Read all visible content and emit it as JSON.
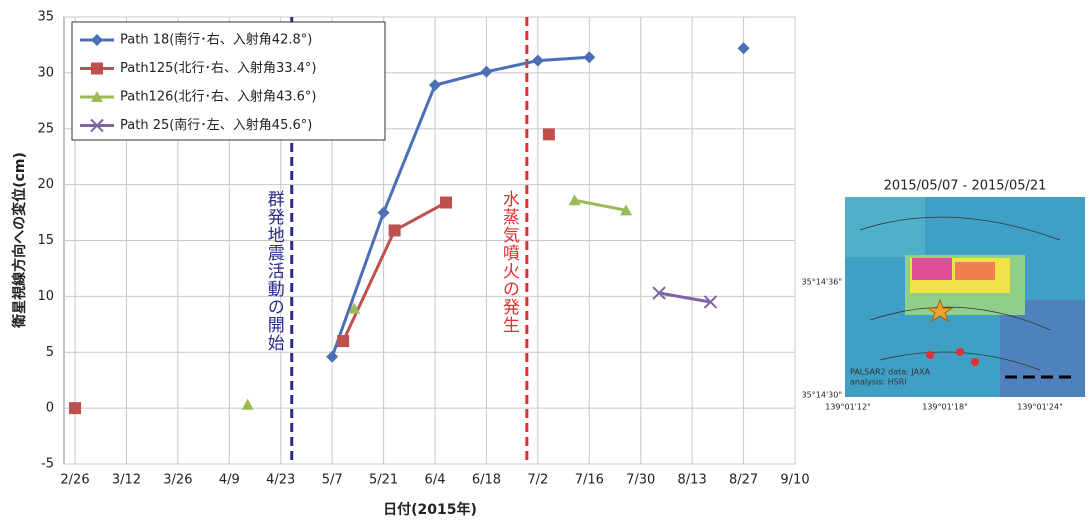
{
  "chart_data": {
    "type": "line",
    "xlabel": "日付(2015年)",
    "ylabel": "衛星視線方向への変位(cm)",
    "xlim": [
      "2/23",
      "9/10"
    ],
    "xticks": [
      "2/26",
      "3/12",
      "3/26",
      "4/9",
      "4/23",
      "5/7",
      "5/21",
      "6/4",
      "6/18",
      "7/2",
      "7/16",
      "7/30",
      "8/13",
      "8/27",
      "9/10"
    ],
    "ylim": [
      -5,
      35
    ],
    "yticks": [
      -5,
      0,
      5,
      10,
      15,
      20,
      25,
      30,
      35
    ],
    "grid": true,
    "legend": "upper left",
    "series": [
      {
        "name": "Path 18(南行･右、入射角42.8°)",
        "color": "#4a6fb5",
        "marker": "diamond",
        "x": [
          "5/7",
          "5/21",
          "6/4",
          "6/18",
          "7/2",
          "7/16",
          null,
          "8/27"
        ],
        "values": [
          4.6,
          17.5,
          28.9,
          30.1,
          31.1,
          31.4,
          null,
          32.2
        ]
      },
      {
        "name": "Path125(北行･右、入射角33.4°)",
        "color": "#c0504d",
        "marker": "square",
        "x": [
          "2/26",
          null,
          "5/10",
          "5/24",
          "6/7",
          null,
          "7/5"
        ],
        "values": [
          0,
          null,
          6.0,
          15.9,
          18.4,
          null,
          24.5
        ]
      },
      {
        "name": "Path126(北行･右、入射角43.6°)",
        "color": "#9bbb59",
        "marker": "triangle",
        "x": [
          "4/14",
          null,
          "5/13",
          null,
          "7/12",
          "7/26"
        ],
        "values": [
          0.3,
          null,
          8.9,
          null,
          18.6,
          17.7
        ]
      },
      {
        "name": "Path 25(南行･左、入射角45.6°)",
        "color": "#8064a2",
        "marker": "x",
        "x": [
          "8/4",
          "8/18"
        ],
        "values": [
          10.3,
          9.5
        ]
      }
    ],
    "annotations": [
      {
        "text": "群発地震活動の開始",
        "x": "4/26",
        "color": "#2b2b8c"
      },
      {
        "text": "水蒸気噴火の発生",
        "x": "6/29",
        "color": "#e03030"
      }
    ]
  },
  "inset": {
    "title": "2015/05/07 - 2015/05/21",
    "lat_labels": [
      "35°14'36\"",
      "35°14'30\""
    ],
    "lon_labels": [
      "139°01'12\"",
      "139°01'18\"",
      "139°01'24\""
    ],
    "credit": [
      "PALSAR2 data: JAXA",
      "analysis: HSRI"
    ]
  }
}
